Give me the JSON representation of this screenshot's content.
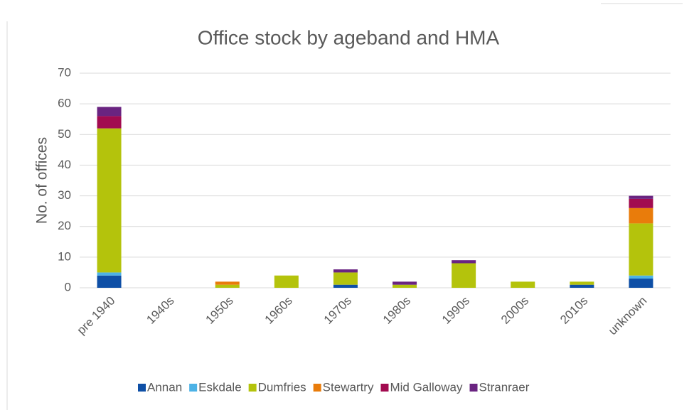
{
  "chart_data": {
    "type": "bar",
    "stacked": true,
    "title": "Office stock by ageband and HMA",
    "y_label": "No. of offices",
    "categories": [
      "pre 1940",
      "1940s",
      "1950s",
      "1960s",
      "1970s",
      "1980s",
      "1990s",
      "2000s",
      "2010s",
      "unknown"
    ],
    "series": [
      {
        "name": "Annan",
        "color": "#0e4fa6",
        "values": [
          4,
          0,
          0,
          0,
          1,
          0,
          0,
          0,
          1,
          3
        ]
      },
      {
        "name": "Eskdale",
        "color": "#4cb2e6",
        "values": [
          1,
          0,
          0,
          0,
          0,
          0,
          0,
          0,
          0,
          1
        ]
      },
      {
        "name": "Dumfries",
        "color": "#b4c30c",
        "values": [
          47,
          0,
          1,
          4,
          4,
          1,
          8,
          2,
          1,
          17
        ]
      },
      {
        "name": "Stewartry",
        "color": "#e97c0b",
        "values": [
          0,
          0,
          1,
          0,
          0,
          0,
          0,
          0,
          0,
          5
        ]
      },
      {
        "name": "Mid Galloway",
        "color": "#a20b50",
        "values": [
          4,
          0,
          0,
          0,
          0,
          0,
          0,
          0,
          0,
          3
        ]
      },
      {
        "name": "Stranraer",
        "color": "#6a2481",
        "values": [
          3,
          0,
          0,
          0,
          1,
          1,
          1,
          0,
          0,
          1
        ]
      }
    ],
    "ylim": [
      0,
      70
    ],
    "yticks": [
      0,
      10,
      20,
      30,
      40,
      50,
      60,
      70
    ],
    "grid": true,
    "legend": "bottom"
  }
}
